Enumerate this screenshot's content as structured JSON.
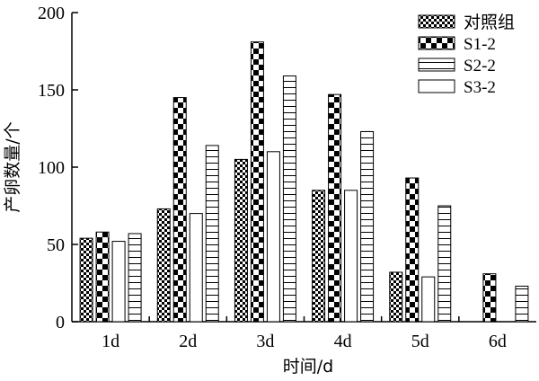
{
  "chart_data": {
    "type": "bar",
    "categories": [
      "1d",
      "2d",
      "3d",
      "4d",
      "5d",
      "6d"
    ],
    "series": [
      {
        "name": "对照组",
        "values": [
          54,
          73,
          105,
          85,
          32,
          null
        ],
        "pattern": "checker-small"
      },
      {
        "name": "S1-2",
        "values": [
          58,
          145,
          181,
          147,
          93,
          31
        ],
        "pattern": "checker-large"
      },
      {
        "name": "S2-2",
        "values": [
          57,
          114,
          159,
          123,
          75,
          23
        ],
        "pattern": "horizontal-lines"
      },
      {
        "name": "S3-2",
        "values": [
          52,
          70,
          110,
          85,
          29,
          null
        ],
        "pattern": "empty"
      }
    ],
    "bar_series_order": [
      0,
      1,
      3,
      2
    ],
    "xlabel": "时间/d",
    "ylabel": "产卵数量/个",
    "ylim": [
      0,
      200
    ],
    "yticks": [
      0,
      50,
      100,
      150,
      200
    ],
    "legend_placement": "top-right",
    "grid": false
  }
}
